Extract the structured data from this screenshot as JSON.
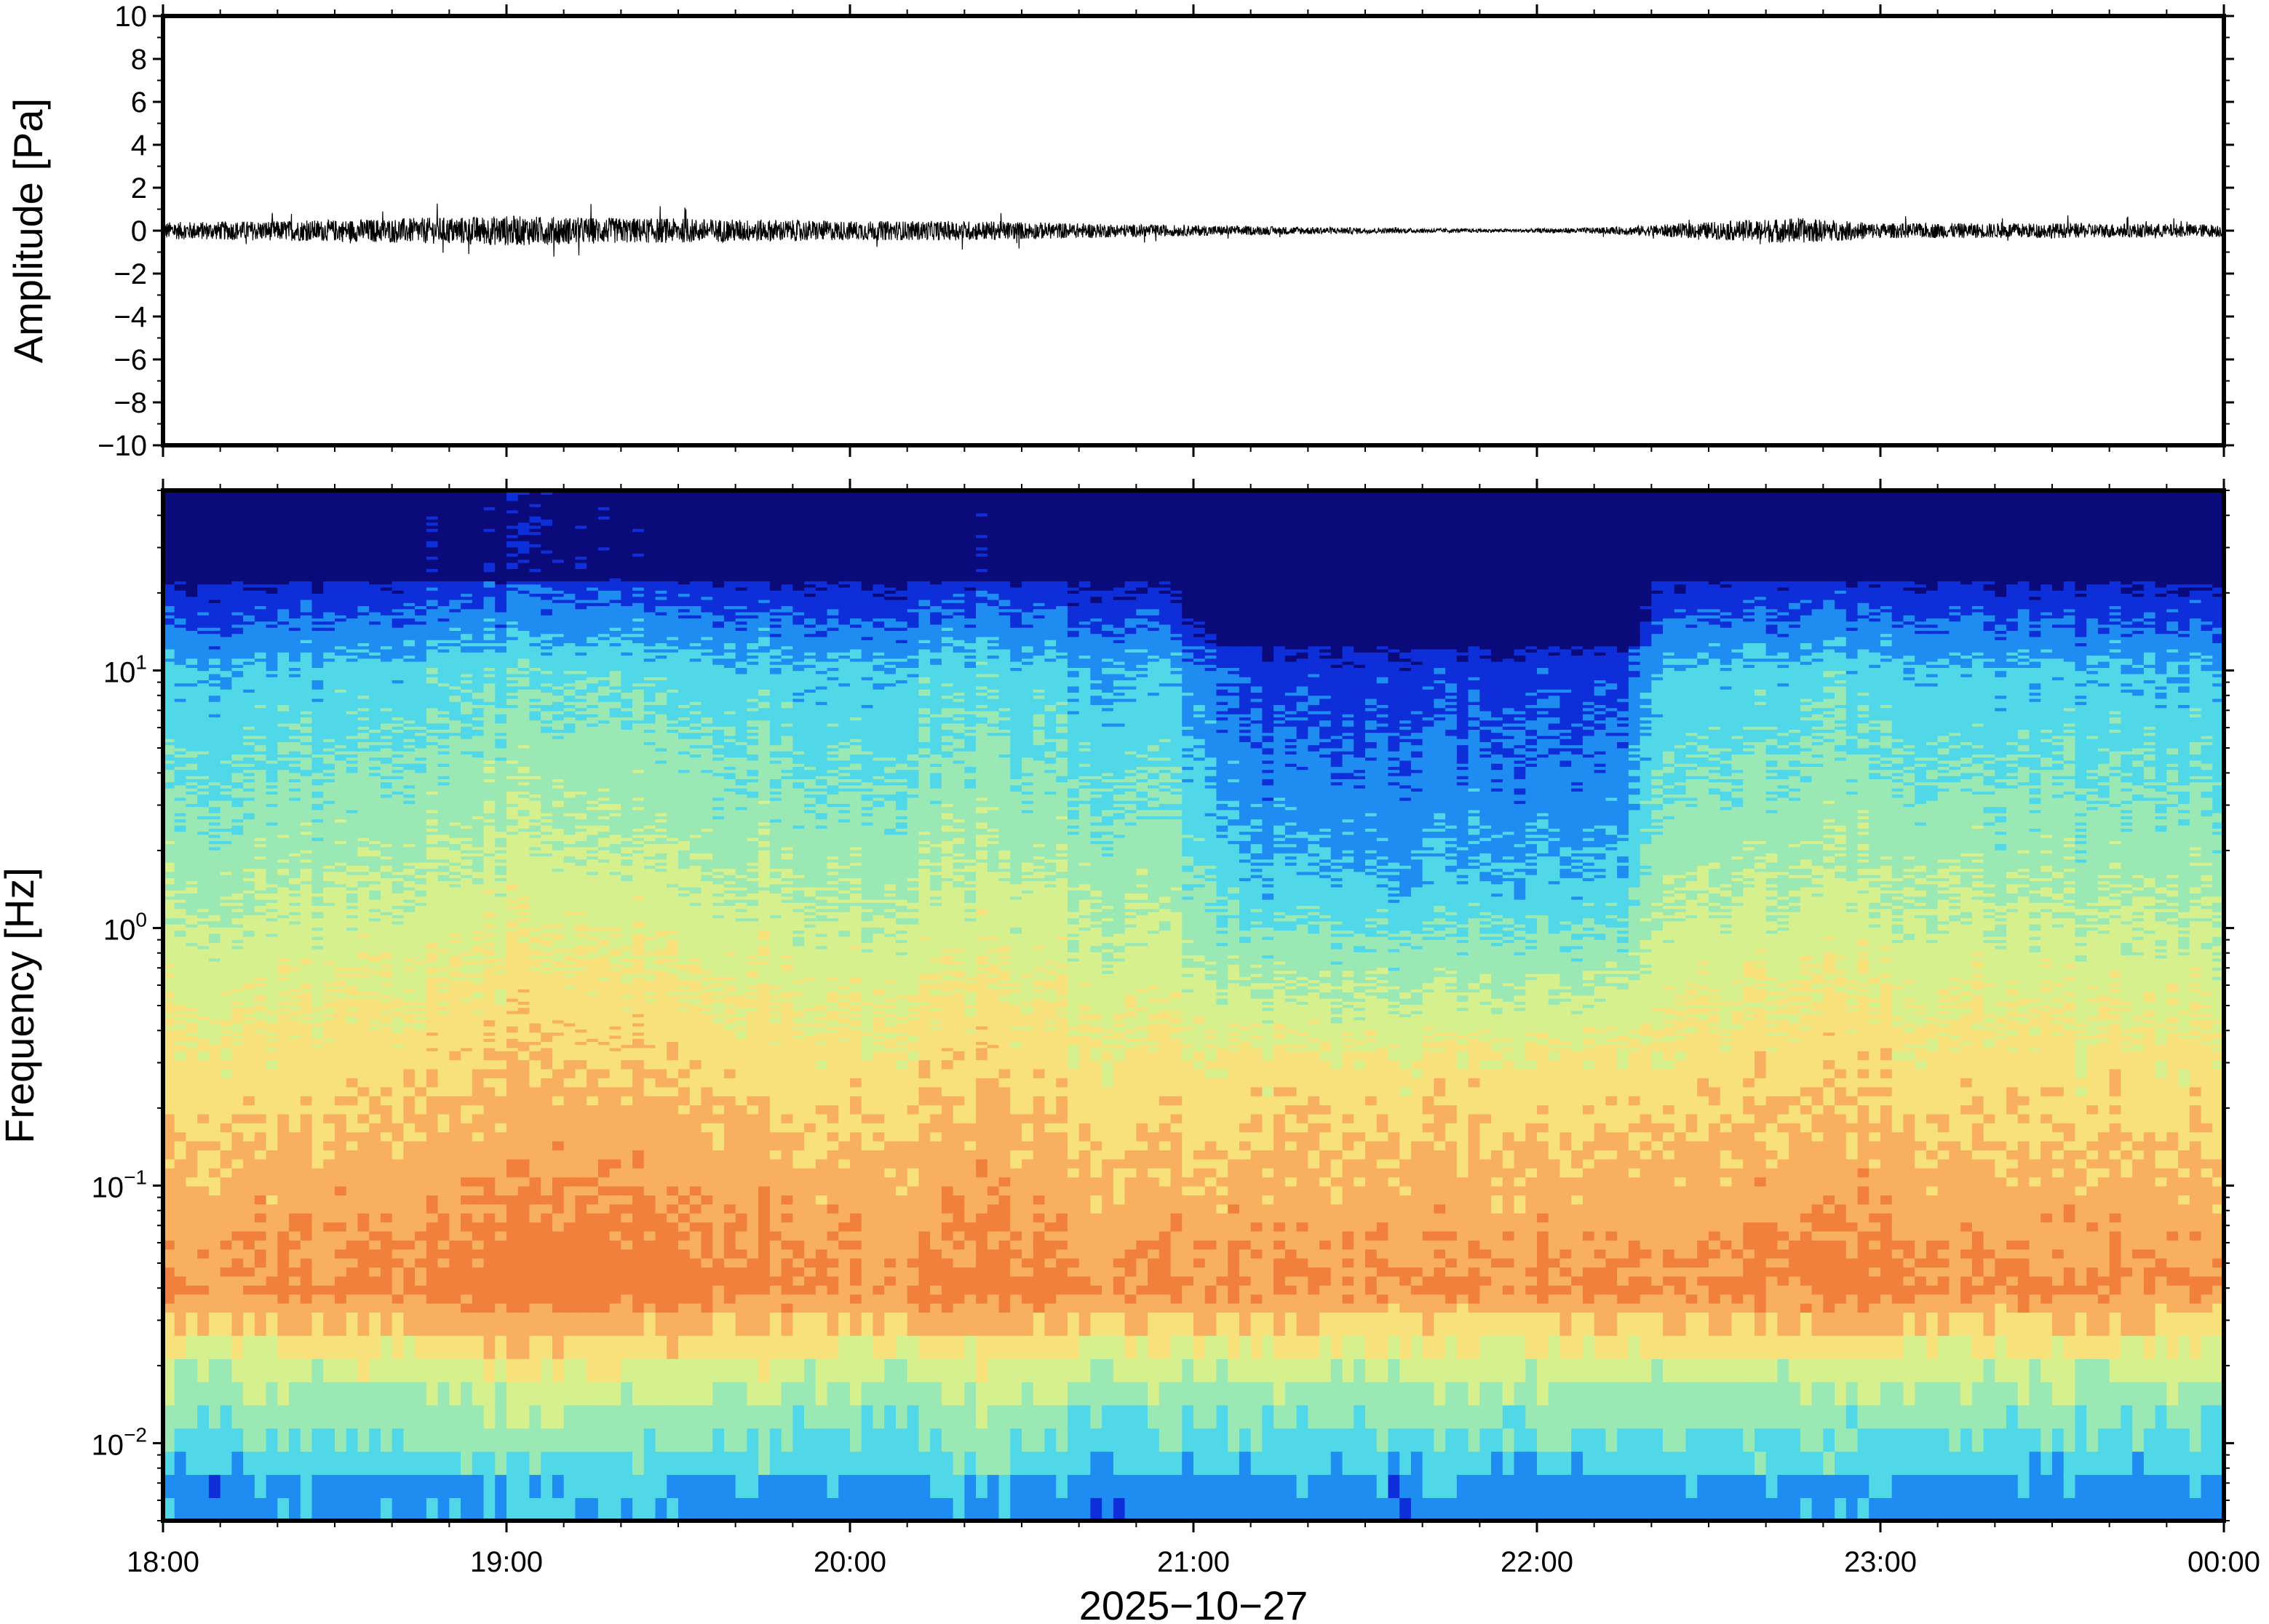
{
  "chart_data": [
    {
      "type": "line",
      "panel": "waveform",
      "ylabel": "Amplitude [Pa]",
      "ylim": [
        -10,
        10
      ],
      "yticks": [
        10,
        8,
        6,
        4,
        2,
        0,
        -2,
        -4,
        -6,
        -8,
        -10
      ],
      "ytick_labels": [
        "10",
        "8",
        "6",
        "4",
        "2",
        "0",
        "−2",
        "−4",
        "−6",
        "−8",
        "−10"
      ],
      "xlim": [
        "18:00",
        "00:00"
      ],
      "envelope": {
        "x_hours": [
          18.0,
          18.5,
          19.0,
          19.3,
          19.6,
          20.0,
          20.4,
          20.8,
          21.2,
          21.6,
          21.9,
          22.2,
          22.5,
          22.75,
          23.0,
          23.5,
          24.0
        ],
        "amplitude_pa": [
          0.4,
          0.5,
          0.7,
          0.6,
          0.55,
          0.45,
          0.45,
          0.3,
          0.2,
          0.12,
          0.08,
          0.15,
          0.4,
          0.6,
          0.35,
          0.35,
          0.3
        ]
      },
      "line_color": "#000000"
    },
    {
      "type": "heatmap",
      "panel": "spectrogram",
      "ylabel": "Frequency [Hz]",
      "yscale": "log",
      "ylim": [
        0.005,
        50
      ],
      "ytick_labels": [
        {
          "base": "10",
          "exp": "−2"
        },
        {
          "base": "10",
          "exp": "−1"
        },
        {
          "base": "10",
          "exp": "0"
        },
        {
          "base": "10",
          "exp": "1"
        }
      ],
      "xticks": [
        "18:00",
        "19:00",
        "20:00",
        "21:00",
        "22:00",
        "23:00",
        "00:00"
      ],
      "xlabel": "2025−10−27",
      "colormap": "jet",
      "colors": [
        "#0a0a7a",
        "#0d2ed8",
        "#1e8cf0",
        "#50d8e8",
        "#9ae8b4",
        "#d6f08e",
        "#f8e07a",
        "#f8b060",
        "#f0803c",
        "#e84c3c"
      ],
      "quiet_period": [
        "21:10",
        "22:15"
      ]
    }
  ]
}
